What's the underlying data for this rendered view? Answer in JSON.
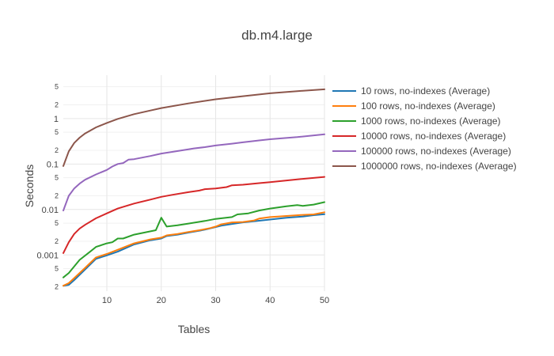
{
  "chart_data": {
    "type": "line",
    "title": "db.m4.large",
    "xlabel": "Tables",
    "ylabel": "Seconds",
    "xlim": [
      2,
      50
    ],
    "ylim": [
      0.00016,
      9
    ],
    "yscale": "log",
    "x_ticks": [
      10,
      20,
      30,
      40,
      50
    ],
    "y_major_ticks": [
      {
        "value": 0.001,
        "label": "0.001"
      },
      {
        "value": 0.01,
        "label": "0.01"
      },
      {
        "value": 0.1,
        "label": "0.1"
      },
      {
        "value": 1,
        "label": "1"
      }
    ],
    "y_minor_ticks": [
      {
        "value": 0.0002,
        "label": "2"
      },
      {
        "value": 0.0005,
        "label": "5"
      },
      {
        "value": 0.002,
        "label": "2"
      },
      {
        "value": 0.005,
        "label": "5"
      },
      {
        "value": 0.02,
        "label": "2"
      },
      {
        "value": 0.05,
        "label": "5"
      },
      {
        "value": 0.2,
        "label": "2"
      },
      {
        "value": 0.5,
        "label": "5"
      },
      {
        "value": 2,
        "label": "2"
      },
      {
        "value": 5,
        "label": "5"
      }
    ],
    "grid": true,
    "legend_position": "right",
    "series": [
      {
        "name": "10 rows, no-indexes (Average)",
        "color": "#1f77b4",
        "x": [
          2,
          3,
          4,
          6,
          8,
          10,
          12,
          15,
          18,
          20,
          21,
          23,
          25,
          27,
          28,
          30,
          31,
          33,
          35,
          37,
          40,
          43,
          46,
          48,
          50
        ],
        "y": [
          0.00021,
          0.00022,
          0.00028,
          0.00048,
          0.00082,
          0.00098,
          0.00118,
          0.0017,
          0.0021,
          0.0023,
          0.0026,
          0.0028,
          0.0031,
          0.0034,
          0.0036,
          0.0041,
          0.0044,
          0.0048,
          0.0052,
          0.0055,
          0.006,
          0.0066,
          0.007,
          0.0075,
          0.0079
        ]
      },
      {
        "name": "100 rows, no-indexes (Average)",
        "color": "#ff7f0e",
        "x": [
          2,
          3,
          4,
          6,
          8,
          10,
          12,
          15,
          18,
          20,
          21,
          23,
          25,
          27,
          29,
          30,
          31,
          33,
          35,
          37,
          38,
          40,
          43,
          46,
          48,
          50
        ],
        "y": [
          0.00021,
          0.00024,
          0.00031,
          0.00052,
          0.00088,
          0.00105,
          0.0013,
          0.0018,
          0.0022,
          0.0024,
          0.0027,
          0.0029,
          0.0032,
          0.0035,
          0.0039,
          0.0042,
          0.0047,
          0.0052,
          0.0053,
          0.0057,
          0.0063,
          0.0068,
          0.0072,
          0.0076,
          0.0078,
          0.0087
        ]
      },
      {
        "name": "1000 rows, no-indexes (Average)",
        "color": "#2ca02c",
        "x": [
          2,
          3,
          5,
          7,
          8,
          10,
          11,
          12,
          13,
          15,
          19,
          20,
          21,
          23,
          25,
          28,
          30,
          33,
          34,
          36,
          38,
          40,
          43,
          45,
          46,
          48,
          50
        ],
        "y": [
          0.00032,
          0.0004,
          0.00078,
          0.0012,
          0.0015,
          0.0018,
          0.0019,
          0.0023,
          0.0023,
          0.0028,
          0.0035,
          0.0066,
          0.0042,
          0.0045,
          0.0049,
          0.0056,
          0.0062,
          0.0068,
          0.0078,
          0.0082,
          0.0095,
          0.0105,
          0.0118,
          0.0125,
          0.012,
          0.0128,
          0.0145
        ]
      },
      {
        "name": "10000 rows, no-indexes (Average)",
        "color": "#d62728",
        "x": [
          2,
          3,
          4,
          5,
          6,
          8,
          10,
          12,
          15,
          18,
          20,
          22,
          25,
          27,
          28,
          30,
          32,
          33,
          35,
          38,
          40,
          45,
          50
        ],
        "y": [
          0.0011,
          0.0019,
          0.0029,
          0.0038,
          0.0046,
          0.0064,
          0.0082,
          0.0105,
          0.0135,
          0.0165,
          0.019,
          0.021,
          0.024,
          0.026,
          0.028,
          0.029,
          0.031,
          0.034,
          0.035,
          0.038,
          0.04,
          0.046,
          0.052
        ]
      },
      {
        "name": "100000 rows, no-indexes (Average)",
        "color": "#9467bd",
        "x": [
          2,
          3,
          4,
          5,
          6,
          8,
          10,
          11,
          12,
          13,
          14,
          15,
          18,
          20,
          22,
          25,
          26,
          28,
          30,
          33,
          35,
          38,
          40,
          45,
          50
        ],
        "y": [
          0.0095,
          0.02,
          0.029,
          0.037,
          0.045,
          0.059,
          0.074,
          0.088,
          0.1,
          0.105,
          0.125,
          0.128,
          0.15,
          0.17,
          0.185,
          0.21,
          0.22,
          0.235,
          0.255,
          0.28,
          0.3,
          0.33,
          0.35,
          0.39,
          0.45
        ]
      },
      {
        "name": "1000000 rows, no-indexes (Average)",
        "color": "#8c564b",
        "x": [
          2,
          3,
          4,
          5,
          6,
          8,
          10,
          12,
          15,
          18,
          20,
          25,
          30,
          35,
          40,
          45,
          50
        ],
        "y": [
          0.09,
          0.19,
          0.29,
          0.38,
          0.47,
          0.64,
          0.8,
          0.98,
          1.25,
          1.5,
          1.7,
          2.15,
          2.65,
          3.1,
          3.6,
          4.0,
          4.4
        ]
      }
    ]
  }
}
